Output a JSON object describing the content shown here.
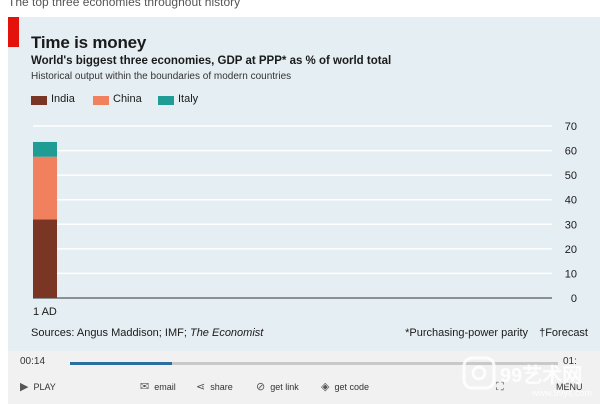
{
  "caption": "The top three economies throughout history",
  "chart_data": {
    "type": "bar",
    "stacked": true,
    "title": "Time is money",
    "subtitle": "World's biggest three economies, GDP at PPP* as % of world total",
    "note": "Historical output within the boundaries of modern countries",
    "categories": [
      "1 AD"
    ],
    "series": [
      {
        "name": "India",
        "color": "#7a3524",
        "values": [
          32
        ]
      },
      {
        "name": "China",
        "color": "#f0805e",
        "values": [
          25.5
        ]
      },
      {
        "name": "Italy",
        "color": "#1f9c94",
        "values": [
          6
        ]
      }
    ],
    "ylim": [
      0,
      70
    ],
    "yticks": [
      "0",
      "10",
      "20",
      "30",
      "40",
      "50",
      "60",
      "70"
    ],
    "yaxis_position": "right",
    "grid": true,
    "legend_position": "top-left",
    "source_prefix": "Sources: Angus Maddison; IMF; ",
    "source_italic": "The Economist",
    "footnote_ppp": "*Purchasing-power parity",
    "footnote_forecast": "†Forecast"
  },
  "player": {
    "current_time": "00:14",
    "end_time": "01:",
    "progress": 0.21,
    "play_label": "PLAY",
    "email_label": "email",
    "share_label": "share",
    "getlink_label": "get link",
    "getcode_label": "get code",
    "menu_label": "MENU"
  },
  "watermark": {
    "text": "99艺术网",
    "url": "www.99ys.com"
  }
}
